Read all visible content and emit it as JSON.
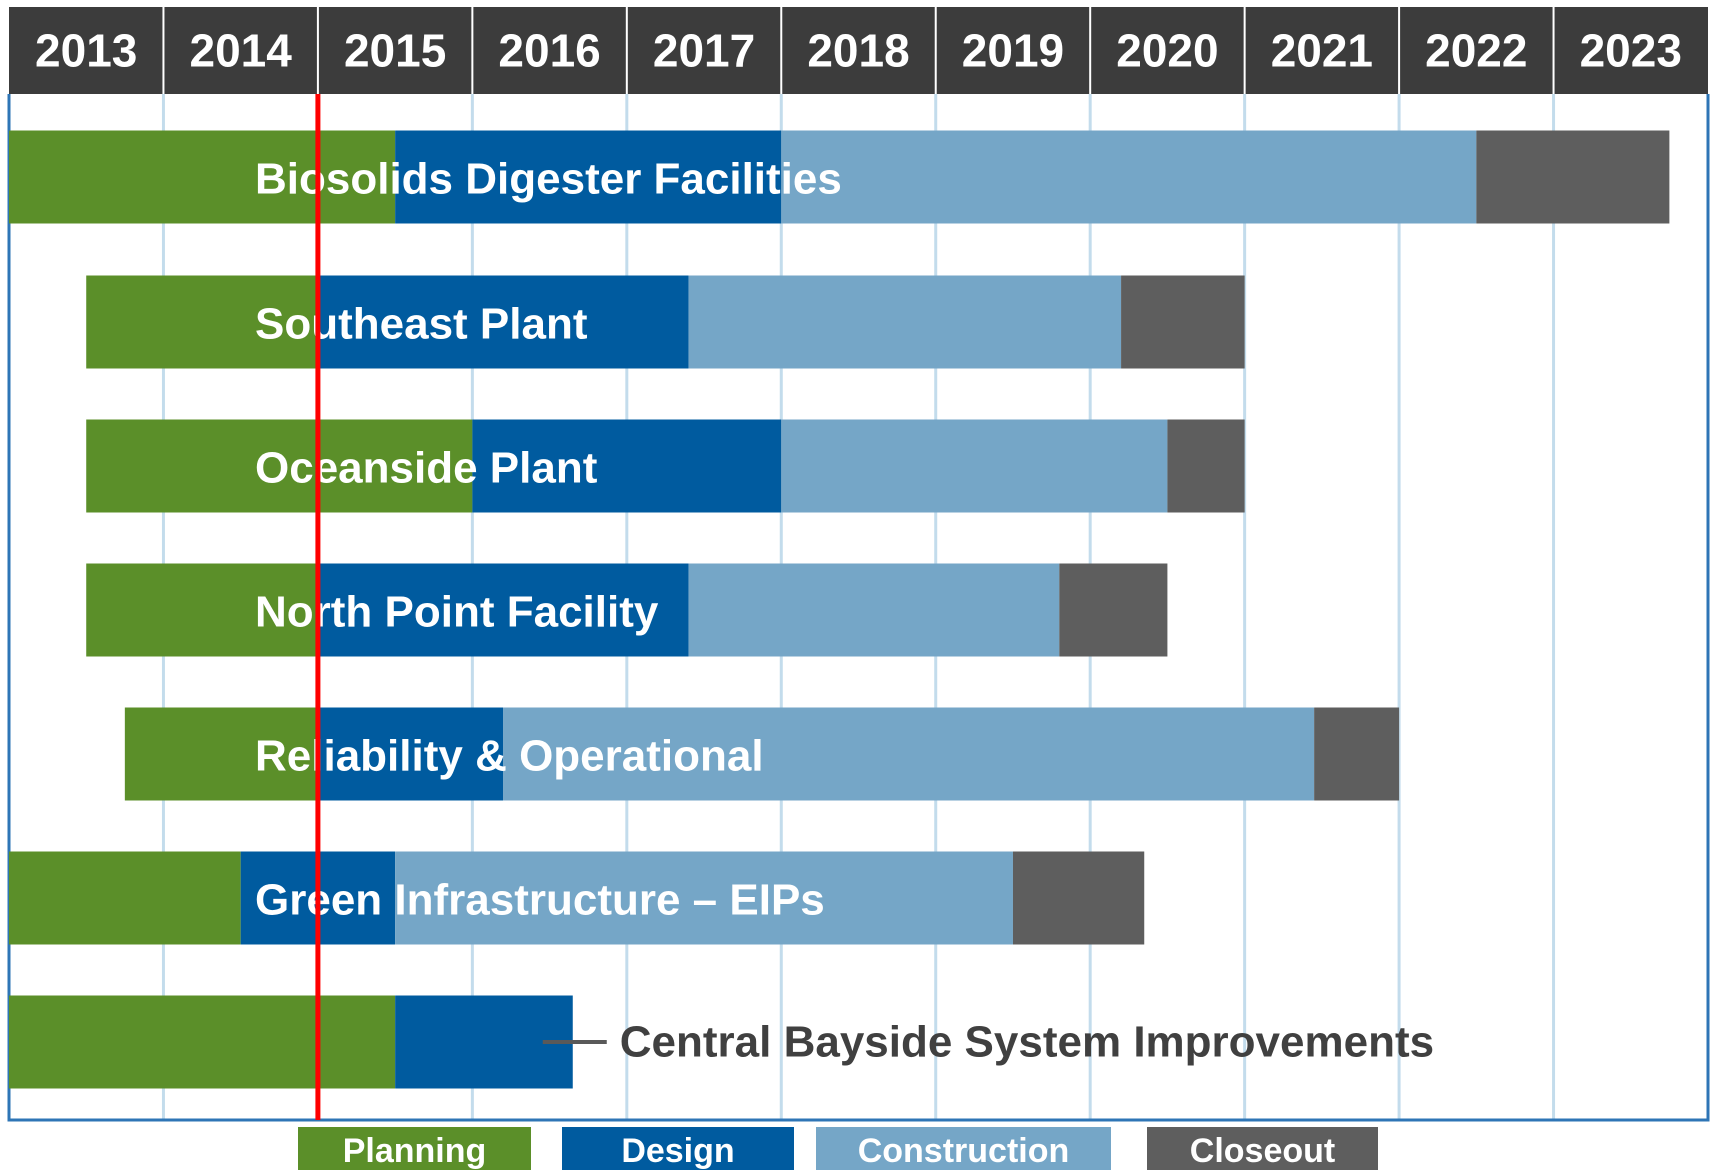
{
  "chart_data": {
    "type": "gantt",
    "xlim": [
      2013,
      2024
    ],
    "xticks": [
      2013,
      2014,
      2015,
      2016,
      2017,
      2018,
      2019,
      2020,
      2021,
      2022,
      2023
    ],
    "grid": true,
    "marker": 2015,
    "tasks": [
      "Biosolids Digester Facilities",
      "Southeast Plant",
      "Oceanside Plant",
      "North Point Facility",
      "Reliability & Operational",
      "Green Infrastructure – EIPs",
      "Central Bayside System Improvements"
    ],
    "starts": [
      2013,
      2013.5,
      2013.5,
      2013.5,
      2013.75,
      2013,
      2013
    ],
    "series": [
      {
        "name": "Planning",
        "color": "#5b8f29",
        "values": [
          2.5,
          1.5,
          2.5,
          1.5,
          1.25,
          1.5,
          2.5
        ]
      },
      {
        "name": "Design",
        "color": "#005b9f",
        "values": [
          2.5,
          2.4,
          2.0,
          2.4,
          1.2,
          1.0,
          1.15
        ]
      },
      {
        "name": "Construction",
        "color": "#75a6c7",
        "values": [
          4.5,
          2.8,
          2.5,
          2.4,
          5.25,
          4.0,
          null
        ]
      },
      {
        "name": "Closeout",
        "color": "#5e5e5e",
        "values": [
          1.25,
          0.8,
          0.5,
          0.7,
          0.55,
          0.85,
          null
        ]
      }
    ]
  }
}
